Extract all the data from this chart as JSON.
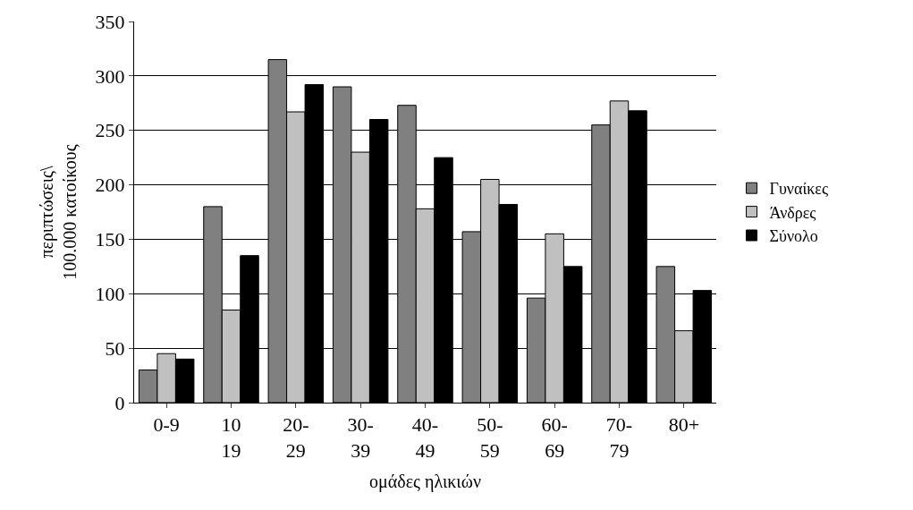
{
  "chart_data": {
    "type": "bar",
    "xlabel": "ομάδες ηλικιών",
    "ylabel": "περιπτώσεις\\\n100.000 κατοίκους",
    "categories": [
      "0-9",
      "10\n19",
      "20-\n29",
      "30-\n39",
      "40-\n49",
      "50-\n59",
      "60-\n69",
      "70-\n79",
      "80+"
    ],
    "series": [
      {
        "name": "Γυναίκες",
        "color": "#808080",
        "values": [
          30,
          180,
          315,
          290,
          273,
          157,
          96,
          255,
          125
        ]
      },
      {
        "name": "Άνδρες",
        "color": "#c0c0c0",
        "values": [
          45,
          85,
          267,
          230,
          178,
          205,
          155,
          277,
          66
        ]
      },
      {
        "name": "Σύνολο",
        "color": "#000000",
        "values": [
          40,
          135,
          292,
          260,
          225,
          182,
          125,
          268,
          103
        ]
      }
    ],
    "ylim": [
      0,
      350
    ],
    "yticks": [
      0,
      50,
      100,
      150,
      200,
      250,
      300,
      350
    ],
    "grid": "y",
    "legend": "right"
  }
}
